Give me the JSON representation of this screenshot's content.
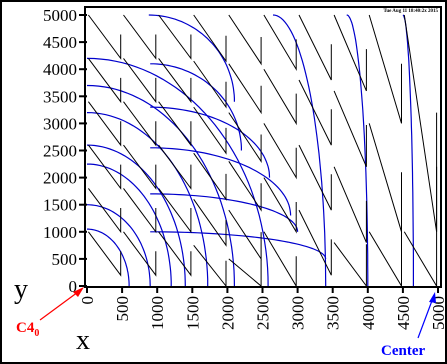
{
  "stamp": "Tue Aug 11 18:40:2x 2015",
  "chart_data": {
    "type": "line",
    "title": "",
    "xlabel": "x",
    "ylabel": "y",
    "xlim": [
      0,
      5000
    ],
    "ylim": [
      0,
      5000
    ],
    "x_ticks": [
      0,
      500,
      1000,
      1500,
      2000,
      2500,
      3000,
      3500,
      4000,
      4500,
      5000
    ],
    "y_ticks": [
      0,
      500,
      1000,
      1500,
      2000,
      2500,
      3000,
      3500,
      4000,
      4500,
      5000
    ],
    "x_tick_labels": [
      "0",
      "500",
      "1000",
      "1500",
      "2000",
      "2500",
      "3000",
      "3500",
      "4000",
      "4500",
      "5000"
    ],
    "y_tick_labels": [
      "0",
      "500",
      "1000",
      "1500",
      "2000",
      "2500",
      "3000",
      "3500",
      "4000",
      "4500",
      "5000"
    ],
    "grid": false,
    "annotations": [
      {
        "label": "C4",
        "subscript": "0",
        "color": "#ff0000",
        "points_to": [
          0,
          0
        ]
      },
      {
        "label": "Center",
        "color": "#0000ff",
        "points_to": [
          5000,
          0
        ]
      }
    ],
    "series": [
      {
        "color": "#0000cc",
        "style": "solid",
        "kind": "blue-arcs",
        "arcs": [
          {
            "top": 5000,
            "bottom": 3400,
            "start_x": 880,
            "end_x": 2100
          },
          {
            "top": 4100,
            "bottom": 2500,
            "start_x": 900,
            "end_x": 2200
          },
          {
            "top": 3300,
            "bottom": 2000,
            "start_x": 900,
            "end_x": 2600
          },
          {
            "top": 2550,
            "bottom": 1300,
            "start_x": 900,
            "end_x": 2900
          },
          {
            "top": 1700,
            "bottom": 1000,
            "start_x": 900,
            "end_x": 3000
          },
          {
            "top": 1000,
            "bottom": 500,
            "start_x": 900,
            "end_x": 3400
          },
          {
            "top": 4200,
            "bottom": 0,
            "start_x": 0,
            "end_x": 2580
          },
          {
            "top": 3700,
            "bottom": 0,
            "start_x": 0,
            "end_x": 2100
          },
          {
            "top": 3200,
            "bottom": 0,
            "start_x": 0,
            "end_x": 1720
          },
          {
            "top": 2600,
            "bottom": 0,
            "start_x": 0,
            "end_x": 1400
          },
          {
            "top": 2250,
            "bottom": 0,
            "start_x": 0,
            "end_x": 1200
          },
          {
            "top": 1500,
            "bottom": 0,
            "start_x": 0,
            "end_x": 900
          },
          {
            "top": 1050,
            "bottom": 0,
            "start_x": 0,
            "end_x": 600
          },
          {
            "top": 5000,
            "bottom": 0,
            "start_x": 2650,
            "end_x": 3400
          },
          {
            "top": 5000,
            "bottom": 0,
            "start_x": 3700,
            "end_x": 4000
          },
          {
            "top": 5000,
            "bottom": 0,
            "start_x": 4500,
            "end_x": 4650
          }
        ]
      },
      {
        "color": "#000000",
        "style": "solid",
        "kind": "black-sawtooth",
        "columns": [
          0,
          500,
          1000,
          1500,
          2000,
          2500,
          3000,
          3500,
          4000,
          4500,
          5000
        ],
        "tooth_heights": [
          800,
          800,
          800,
          850,
          900,
          1000,
          1200,
          1400,
          2000,
          4000,
          5000
        ]
      }
    ]
  }
}
